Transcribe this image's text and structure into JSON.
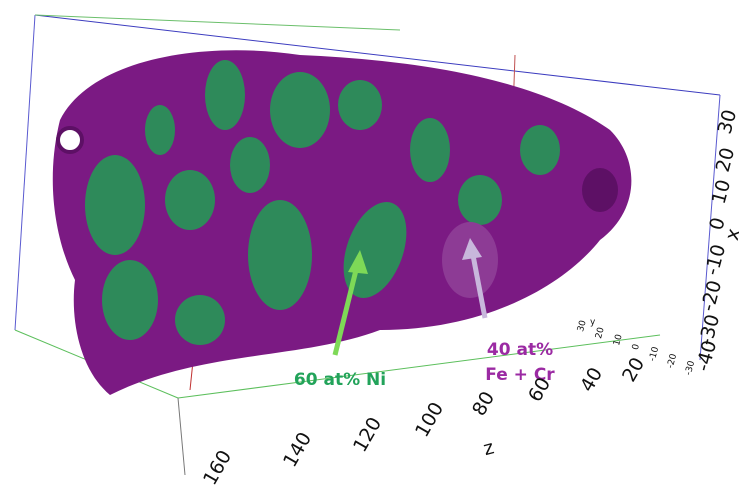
{
  "annotations": {
    "ni": "60 at% Ni",
    "fecr_line1": "40 at%",
    "fecr_line2": "Fe + Cr"
  },
  "axes": {
    "z": {
      "label": "z",
      "ticks": [
        "160",
        "140",
        "120",
        "100",
        "80",
        "60",
        "40",
        "20"
      ]
    },
    "x": {
      "label": "x",
      "ticks": [
        "30",
        "20",
        "10",
        "0",
        "-10",
        "-20",
        "-30",
        "-40"
      ]
    },
    "y": {
      "label": "y",
      "ticks": [
        "-30",
        "-20",
        "-10",
        "0",
        "10",
        "20",
        "30"
      ]
    }
  }
}
